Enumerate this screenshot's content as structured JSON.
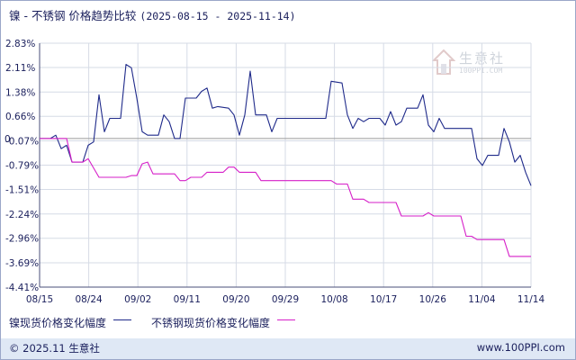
{
  "title": {
    "main": "镍 - 不锈钢 价格趋势比较",
    "range": "(2025-08-15 - 2025-11-14)"
  },
  "watermark": {
    "text": "生意社",
    "sub": "100PPI.COM"
  },
  "footer": {
    "left": "© 2025.11 生意社",
    "right": "www.100PPI.com"
  },
  "colors": {
    "nickel": "#1f2a8a",
    "stainless": "#d61fc8",
    "grid": "#d6dbe6",
    "zero": "#9a9a9a",
    "axis": "#4a4f7a"
  },
  "chart_data": {
    "type": "line",
    "title": "镍 - 不锈钢 价格趋势比较",
    "xlabel": "",
    "ylabel": "",
    "y_ticks": [
      "2.83%",
      "2.11%",
      "1.38%",
      "0.66%",
      "-0.07%",
      "-0.79%",
      "-1.51%",
      "-2.24%",
      "-2.96%",
      "-3.69%",
      "-4.41%"
    ],
    "y_tick_values": [
      2.83,
      2.11,
      1.38,
      0.66,
      -0.07,
      -0.79,
      -1.51,
      -2.24,
      -2.96,
      -3.69,
      -4.41
    ],
    "zero_label": "0",
    "ylim": [
      -4.41,
      2.83
    ],
    "x_ticks": [
      "08/15",
      "08/24",
      "09/02",
      "09/11",
      "09/20",
      "09/29",
      "10/08",
      "10/17",
      "10/26",
      "11/04",
      "11/14"
    ],
    "xlim": [
      "2025-08-15",
      "2025-11-14"
    ],
    "grid": true,
    "legend_position": "bottom",
    "series": [
      {
        "name": "镍现货价格变化幅度",
        "color": "#1f2a8a",
        "points": [
          [
            "2025-08-15",
            0.0
          ],
          [
            "2025-08-17",
            0.0
          ],
          [
            "2025-08-18",
            0.1
          ],
          [
            "2025-08-19",
            -0.3
          ],
          [
            "2025-08-20",
            -0.2
          ],
          [
            "2025-08-21",
            -0.7
          ],
          [
            "2025-08-23",
            -0.7
          ],
          [
            "2025-08-24",
            -0.2
          ],
          [
            "2025-08-25",
            -0.1
          ],
          [
            "2025-08-26",
            1.3
          ],
          [
            "2025-08-27",
            0.2
          ],
          [
            "2025-08-28",
            0.6
          ],
          [
            "2025-08-30",
            0.6
          ],
          [
            "2025-08-31",
            2.2
          ],
          [
            "2025-09-01",
            2.1
          ],
          [
            "2025-09-02",
            1.2
          ],
          [
            "2025-09-03",
            0.2
          ],
          [
            "2025-09-04",
            0.1
          ],
          [
            "2025-09-06",
            0.1
          ],
          [
            "2025-09-07",
            0.7
          ],
          [
            "2025-09-08",
            0.5
          ],
          [
            "2025-09-09",
            0.0
          ],
          [
            "2025-09-10",
            0.0
          ],
          [
            "2025-09-11",
            1.2
          ],
          [
            "2025-09-13",
            1.2
          ],
          [
            "2025-09-14",
            1.4
          ],
          [
            "2025-09-15",
            1.5
          ],
          [
            "2025-09-16",
            0.9
          ],
          [
            "2025-09-17",
            0.95
          ],
          [
            "2025-09-19",
            0.9
          ],
          [
            "2025-09-20",
            0.7
          ],
          [
            "2025-09-21",
            0.1
          ],
          [
            "2025-09-22",
            0.7
          ],
          [
            "2025-09-23",
            2.0
          ],
          [
            "2025-09-24",
            0.7
          ],
          [
            "2025-09-26",
            0.7
          ],
          [
            "2025-09-27",
            0.2
          ],
          [
            "2025-09-28",
            0.6
          ],
          [
            "2025-10-07",
            0.6
          ],
          [
            "2025-10-08",
            1.7
          ],
          [
            "2025-10-10",
            1.65
          ],
          [
            "2025-10-11",
            0.7
          ],
          [
            "2025-10-12",
            0.3
          ],
          [
            "2025-10-13",
            0.6
          ],
          [
            "2025-10-14",
            0.5
          ],
          [
            "2025-10-15",
            0.6
          ],
          [
            "2025-10-17",
            0.6
          ],
          [
            "2025-10-18",
            0.4
          ],
          [
            "2025-10-19",
            0.8
          ],
          [
            "2025-10-20",
            0.4
          ],
          [
            "2025-10-21",
            0.5
          ],
          [
            "2025-10-22",
            0.9
          ],
          [
            "2025-10-24",
            0.9
          ],
          [
            "2025-10-25",
            1.3
          ],
          [
            "2025-10-26",
            0.4
          ],
          [
            "2025-10-27",
            0.2
          ],
          [
            "2025-10-28",
            0.6
          ],
          [
            "2025-10-29",
            0.3
          ],
          [
            "2025-11-03",
            0.3
          ],
          [
            "2025-11-04",
            -0.6
          ],
          [
            "2025-11-05",
            -0.8
          ],
          [
            "2025-11-06",
            -0.5
          ],
          [
            "2025-11-08",
            -0.5
          ],
          [
            "2025-11-09",
            0.3
          ],
          [
            "2025-11-10",
            -0.1
          ],
          [
            "2025-11-11",
            -0.7
          ],
          [
            "2025-11-12",
            -0.5
          ],
          [
            "2025-11-13",
            -1.0
          ],
          [
            "2025-11-14",
            -1.4
          ]
        ]
      },
      {
        "name": "不锈钢现货价格变化幅度",
        "color": "#d61fc8",
        "points": [
          [
            "2025-08-15",
            0.0
          ],
          [
            "2025-08-20",
            0.0
          ],
          [
            "2025-08-21",
            -0.7
          ],
          [
            "2025-08-23",
            -0.7
          ],
          [
            "2025-08-24",
            -0.6
          ],
          [
            "2025-08-26",
            -1.15
          ],
          [
            "2025-08-31",
            -1.15
          ],
          [
            "2025-09-01",
            -1.1
          ],
          [
            "2025-09-02",
            -1.1
          ],
          [
            "2025-09-03",
            -0.75
          ],
          [
            "2025-09-04",
            -0.7
          ],
          [
            "2025-09-05",
            -1.05
          ],
          [
            "2025-09-09",
            -1.05
          ],
          [
            "2025-09-10",
            -1.25
          ],
          [
            "2025-09-11",
            -1.25
          ],
          [
            "2025-09-12",
            -1.15
          ],
          [
            "2025-09-14",
            -1.15
          ],
          [
            "2025-09-15",
            -1.0
          ],
          [
            "2025-09-18",
            -1.0
          ],
          [
            "2025-09-19",
            -0.85
          ],
          [
            "2025-09-20",
            -0.85
          ],
          [
            "2025-09-21",
            -1.0
          ],
          [
            "2025-09-24",
            -1.0
          ],
          [
            "2025-09-25",
            -1.25
          ],
          [
            "2025-10-08",
            -1.25
          ],
          [
            "2025-10-09",
            -1.35
          ],
          [
            "2025-10-11",
            -1.35
          ],
          [
            "2025-10-12",
            -1.8
          ],
          [
            "2025-10-14",
            -1.8
          ],
          [
            "2025-10-15",
            -1.9
          ],
          [
            "2025-10-20",
            -1.9
          ],
          [
            "2025-10-21",
            -2.3
          ],
          [
            "2025-10-25",
            -2.3
          ],
          [
            "2025-10-26",
            -2.2
          ],
          [
            "2025-10-27",
            -2.3
          ],
          [
            "2025-11-01",
            -2.3
          ],
          [
            "2025-11-02",
            -2.9
          ],
          [
            "2025-11-03",
            -2.9
          ],
          [
            "2025-11-04",
            -3.0
          ],
          [
            "2025-11-09",
            -3.0
          ],
          [
            "2025-11-10",
            -3.5
          ],
          [
            "2025-11-14",
            -3.5
          ]
        ]
      }
    ]
  }
}
